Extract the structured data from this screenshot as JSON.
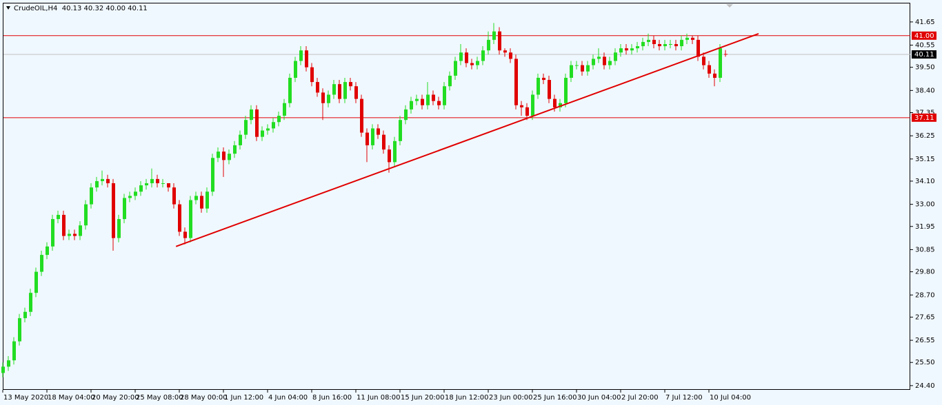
{
  "chart_data": {
    "type": "candlestick",
    "title": "CrudeOIL,H4  40.13 40.32 40.00 40.11",
    "up_color": "#22dd22",
    "down_color": "#e00000",
    "categories": [
      "13 May 2020",
      null,
      null,
      null,
      null,
      null,
      null,
      null,
      "18 May 04:00",
      null,
      null,
      null,
      null,
      null,
      null,
      null,
      "20 May 20:00",
      null,
      null,
      null,
      null,
      null,
      null,
      null,
      "25 May 08:00",
      null,
      null,
      null,
      null,
      null,
      null,
      null,
      "28 May 00:00",
      null,
      null,
      null,
      null,
      null,
      null,
      null,
      "1 Jun 12:00",
      null,
      null,
      null,
      null,
      null,
      null,
      null,
      "4 Jun 04:00",
      null,
      null,
      null,
      null,
      null,
      null,
      null,
      "8 Jun 16:00",
      null,
      null,
      null,
      null,
      null,
      null,
      null,
      "11 Jun 08:00",
      null,
      null,
      null,
      null,
      null,
      null,
      null,
      "15 Jun 20:00",
      null,
      null,
      null,
      null,
      null,
      null,
      null,
      "18 Jun 12:00",
      null,
      null,
      null,
      null,
      null,
      null,
      null,
      "23 Jun 00:00",
      null,
      null,
      null,
      null,
      null,
      null,
      null,
      "25 Jun 16:00",
      null,
      null,
      null,
      null,
      null,
      null,
      null,
      "30 Jun 04:00",
      null,
      null,
      null,
      null,
      null,
      null,
      null,
      "2 Jul 20:00",
      null,
      null,
      null,
      null,
      null,
      null,
      null,
      "7 Jul 12:00",
      null,
      null,
      null,
      null,
      null,
      null,
      null,
      "10 Jul 04:00",
      null,
      null,
      null
    ],
    "open": [
      25.0,
      25.3,
      25.6,
      26.5,
      27.6,
      27.9,
      28.8,
      29.8,
      30.6,
      31.0,
      32.3,
      32.5,
      31.5,
      31.6,
      31.5,
      32.0,
      33.0,
      33.8,
      34.1,
      34.2,
      34.0,
      31.4,
      32.3,
      33.3,
      33.4,
      33.6,
      33.9,
      34.0,
      34.2,
      34.0,
      34.0,
      33.8,
      33.0,
      31.7,
      31.4,
      33.2,
      33.4,
      32.8,
      33.6,
      35.2,
      35.5,
      35.1,
      35.4,
      35.8,
      36.3,
      37.0,
      37.5,
      36.2,
      36.5,
      36.6,
      36.9,
      37.2,
      37.8,
      39.0,
      39.8,
      40.3,
      39.5,
      38.8,
      38.3,
      37.8,
      38.2,
      38.7,
      38.0,
      38.8,
      38.6,
      38.0,
      36.4,
      35.8,
      36.6,
      36.3,
      35.6,
      35.0,
      36.0,
      37.0,
      37.5,
      37.9,
      38.0,
      37.7,
      38.2,
      37.9,
      37.7,
      38.6,
      39.1,
      39.8,
      40.2,
      39.7,
      39.6,
      39.8,
      40.3,
      40.8,
      41.2,
      40.3,
      40.2,
      39.9,
      37.7,
      37.6,
      37.2,
      38.2,
      39.0,
      38.9,
      38.0,
      37.6,
      37.8,
      39.0,
      39.6,
      39.6,
      39.3,
      39.6,
      39.9,
      40.0,
      39.6,
      39.8,
      40.2,
      40.4,
      40.3,
      40.4,
      40.5,
      40.7,
      40.8,
      40.6,
      40.5,
      40.6,
      40.6,
      40.5,
      40.8,
      40.9,
      40.8,
      40.0,
      39.6,
      39.2,
      39.0,
      40.13
    ],
    "high": [
      25.5,
      25.8,
      26.7,
      27.8,
      28.1,
      29.0,
      30.0,
      30.8,
      31.2,
      32.5,
      32.7,
      32.7,
      31.8,
      31.8,
      32.2,
      33.2,
      34.0,
      34.3,
      34.6,
      34.4,
      34.2,
      32.5,
      33.5,
      33.6,
      33.8,
      34.1,
      34.2,
      34.7,
      34.4,
      34.2,
      34.0,
      34.0,
      33.2,
      31.9,
      33.4,
      33.6,
      33.6,
      33.8,
      35.4,
      35.7,
      35.7,
      35.6,
      36.0,
      36.5,
      37.2,
      37.7,
      37.7,
      36.7,
      36.8,
      37.1,
      37.4,
      38.0,
      39.2,
      40.0,
      40.5,
      40.5,
      39.7,
      39.0,
      38.5,
      38.4,
      38.9,
      38.9,
      39.0,
      39.0,
      38.8,
      38.2,
      36.6,
      36.8,
      36.8,
      36.5,
      35.8,
      36.2,
      37.2,
      37.7,
      38.1,
      38.2,
      38.2,
      38.8,
      38.4,
      38.1,
      38.8,
      39.3,
      40.0,
      40.6,
      40.4,
      39.9,
      40.0,
      40.5,
      41.2,
      41.6,
      41.4,
      40.4,
      40.4,
      40.1,
      37.9,
      37.8,
      38.4,
      39.2,
      39.2,
      39.1,
      38.2,
      38.0,
      39.2,
      39.8,
      39.8,
      39.8,
      39.8,
      40.1,
      40.4,
      40.2,
      40.0,
      40.4,
      40.6,
      40.6,
      40.6,
      40.7,
      40.9,
      41.1,
      41.0,
      40.8,
      40.8,
      40.8,
      40.8,
      41.0,
      41.1,
      41.0,
      41.0,
      40.2,
      39.8,
      39.4,
      40.6,
      40.32
    ],
    "low": [
      24.8,
      25.1,
      25.4,
      26.3,
      27.4,
      27.7,
      28.6,
      29.6,
      30.4,
      30.8,
      32.1,
      31.3,
      31.3,
      31.3,
      31.3,
      31.8,
      32.8,
      33.6,
      33.9,
      33.8,
      30.8,
      31.2,
      32.1,
      33.1,
      33.2,
      33.4,
      33.7,
      33.8,
      33.8,
      33.8,
      33.6,
      32.8,
      31.5,
      31.1,
      31.2,
      33.0,
      32.6,
      32.6,
      33.4,
      35.0,
      34.3,
      34.9,
      35.2,
      35.6,
      36.1,
      36.8,
      36.0,
      36.0,
      36.3,
      36.4,
      36.7,
      37.0,
      37.6,
      38.8,
      39.6,
      39.3,
      38.6,
      38.1,
      37.0,
      37.6,
      38.0,
      37.8,
      37.8,
      38.4,
      37.8,
      36.2,
      35.0,
      35.6,
      36.1,
      35.4,
      34.5,
      34.8,
      35.8,
      36.8,
      37.3,
      37.7,
      37.5,
      37.5,
      37.7,
      37.5,
      37.5,
      38.4,
      38.9,
      39.6,
      39.5,
      39.4,
      39.4,
      39.6,
      40.1,
      40.6,
      40.1,
      40.0,
      39.7,
      37.5,
      37.2,
      37.0,
      37.0,
      38.0,
      38.7,
      37.8,
      37.4,
      37.4,
      37.6,
      38.8,
      39.4,
      39.1,
      39.1,
      39.4,
      39.7,
      39.4,
      39.4,
      39.6,
      40.0,
      40.1,
      40.1,
      40.2,
      40.3,
      40.5,
      40.4,
      40.3,
      40.3,
      40.4,
      40.3,
      40.3,
      40.6,
      40.6,
      39.8,
      39.4,
      39.0,
      38.6,
      38.8,
      40.0
    ],
    "close": [
      25.3,
      25.6,
      26.5,
      27.6,
      27.9,
      28.8,
      29.8,
      30.6,
      31.0,
      32.3,
      32.5,
      31.5,
      31.6,
      31.5,
      32.0,
      33.0,
      33.8,
      34.1,
      34.2,
      34.0,
      31.4,
      32.3,
      33.3,
      33.4,
      33.6,
      33.9,
      34.0,
      34.2,
      34.0,
      34.0,
      33.8,
      33.0,
      31.7,
      31.4,
      33.2,
      33.4,
      32.8,
      33.6,
      35.2,
      35.5,
      35.1,
      35.4,
      35.8,
      36.3,
      37.0,
      37.5,
      36.2,
      36.5,
      36.6,
      36.9,
      37.2,
      37.8,
      39.0,
      39.8,
      40.3,
      39.5,
      38.8,
      38.3,
      37.8,
      38.2,
      38.7,
      38.0,
      38.8,
      38.6,
      38.0,
      36.4,
      35.8,
      36.6,
      36.3,
      35.6,
      35.0,
      36.0,
      37.0,
      37.5,
      37.9,
      38.0,
      37.7,
      38.2,
      37.9,
      37.7,
      38.6,
      39.1,
      39.8,
      40.2,
      39.7,
      39.6,
      39.8,
      40.3,
      40.8,
      41.2,
      40.3,
      40.2,
      39.9,
      37.7,
      37.6,
      37.2,
      38.2,
      39.0,
      38.9,
      38.0,
      37.6,
      37.8,
      39.0,
      39.6,
      39.6,
      39.3,
      39.6,
      39.9,
      40.0,
      39.6,
      39.8,
      40.2,
      40.4,
      40.3,
      40.4,
      40.5,
      40.7,
      40.8,
      40.6,
      40.5,
      40.6,
      40.6,
      40.5,
      40.8,
      40.9,
      40.8,
      40.0,
      39.6,
      39.2,
      39.0,
      40.4,
      40.11
    ],
    "ylim": [
      24.2,
      42.56
    ],
    "yticks": [
      41.65,
      40.55,
      {
        "value": 39.5,
        "label": "39.50"
      },
      {
        "value": 38.4,
        "label": "38.40"
      },
      37.35,
      36.25,
      35.15,
      {
        "value": 34.1,
        "label": "34.10"
      },
      {
        "value": 33,
        "label": "33.00"
      },
      31.95,
      30.85,
      {
        "value": 29.8,
        "label": "29.80"
      },
      {
        "value": 28.7,
        "label": "28.70"
      },
      27.65,
      26.55,
      {
        "value": 25.5,
        "label": "25.50"
      },
      {
        "value": 24.4,
        "label": "24.40"
      }
    ],
    "hlines": [
      {
        "value": 41.0,
        "label": "41.00",
        "color": "#e00000"
      },
      {
        "value": 37.11,
        "label": "37.11",
        "color": "#e00000"
      },
      {
        "value": 40.11,
        "label": "40.11",
        "color": "#000000"
      }
    ],
    "trendline": {
      "x": [
        31.4,
        137.0
      ],
      "y": [
        31.0,
        41.09
      ],
      "color": "#e00000"
    }
  }
}
